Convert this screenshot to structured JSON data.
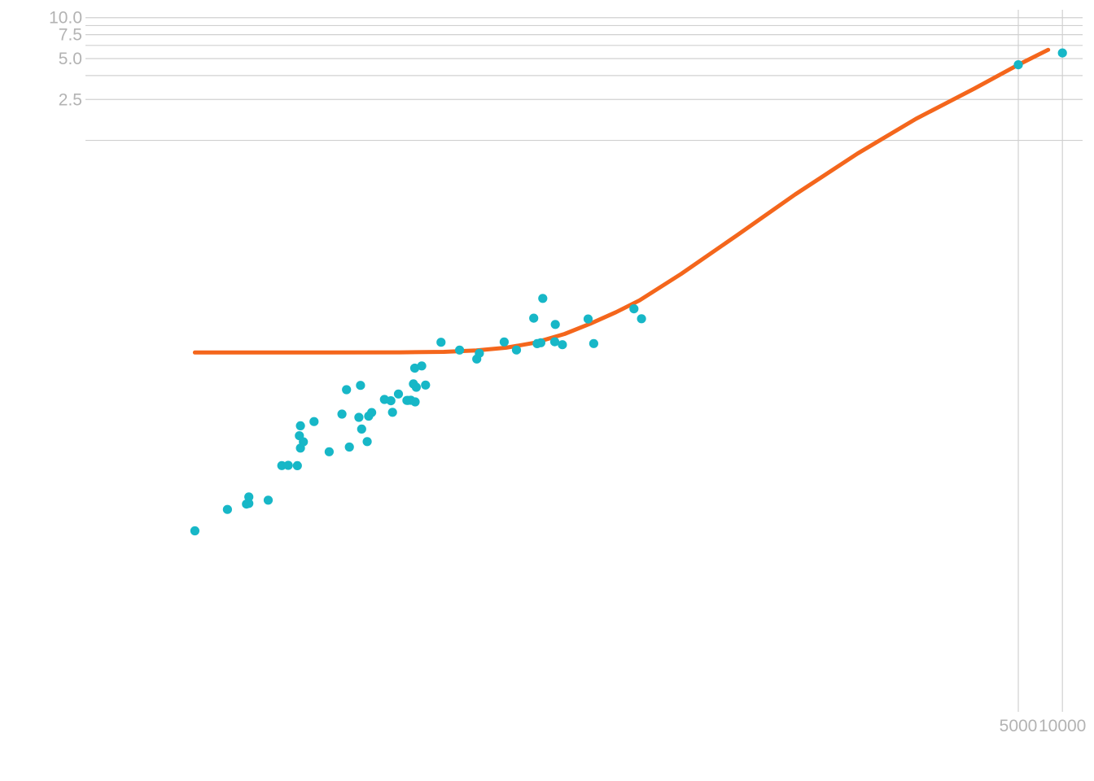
{
  "chart_data": {
    "type": "scatter",
    "title": "",
    "xlabel": "",
    "ylabel": "",
    "x_scale": "log",
    "y_scale": "log",
    "grid": true,
    "legend": "none",
    "x_ticks": [
      {
        "value": 5000,
        "label": "5000"
      },
      {
        "value": 10000,
        "label": "10000"
      }
    ],
    "y_ticks": [
      {
        "value": 10.0,
        "label": "10.0"
      },
      {
        "value": 7.5,
        "label": "7.5"
      },
      {
        "value": 5.0,
        "label": "5.0"
      },
      {
        "value": 2.5,
        "label": "2.5"
      }
    ],
    "y_minor_gridlines": [
      8.75,
      6.25,
      3.75,
      1.25
    ],
    "colors": {
      "points": "#17b7c7",
      "trend": "#f4661c",
      "grid": "#d0d0d0",
      "tick_text": "#b3b3b3"
    },
    "series": [
      {
        "type": "scatter",
        "points": [
          [
            0.012,
            0.00167
          ],
          [
            0.02,
            0.0024
          ],
          [
            0.027,
            0.00263
          ],
          [
            0.028,
            0.00297
          ],
          [
            0.028,
            0.00266
          ],
          [
            0.038,
            0.00281
          ],
          [
            0.047,
            0.00505
          ],
          [
            0.052,
            0.00507
          ],
          [
            0.06,
            0.00504
          ],
          [
            0.062,
            0.00837
          ],
          [
            0.063,
            0.00679
          ],
          [
            0.063,
            0.00991
          ],
          [
            0.066,
            0.00755
          ],
          [
            0.078,
            0.01065
          ],
          [
            0.099,
            0.00638
          ],
          [
            0.121,
            0.01209
          ],
          [
            0.13,
            0.01828
          ],
          [
            0.136,
            0.00691
          ],
          [
            0.158,
            0.01144
          ],
          [
            0.162,
            0.01967
          ],
          [
            0.165,
            0.00937
          ],
          [
            0.18,
            0.00758
          ],
          [
            0.184,
            0.01167
          ],
          [
            0.193,
            0.01241
          ],
          [
            0.236,
            0.01549
          ],
          [
            0.261,
            0.01515
          ],
          [
            0.268,
            0.01245
          ],
          [
            0.294,
            0.01698
          ],
          [
            0.336,
            0.01524
          ],
          [
            0.342,
            0.01523
          ],
          [
            0.357,
            0.01527
          ],
          [
            0.372,
            0.02016
          ],
          [
            0.38,
            0.02633
          ],
          [
            0.382,
            0.01487
          ],
          [
            0.389,
            0.01905
          ],
          [
            0.424,
            0.02734
          ],
          [
            0.45,
            0.01978
          ],
          [
            0.574,
            0.04083
          ],
          [
            0.768,
            0.03578
          ],
          [
            1.006,
            0.03075
          ],
          [
            1.048,
            0.03389
          ],
          [
            1.549,
            0.04106
          ],
          [
            1.879,
            0.0358
          ],
          [
            2.466,
            0.06144
          ],
          [
            2.6,
            0.0399
          ],
          [
            2.755,
            0.04049
          ],
          [
            2.839,
            0.08586
          ],
          [
            3.427,
            0.04117
          ],
          [
            3.46,
            0.05525
          ],
          [
            3.867,
            0.03915
          ],
          [
            5.796,
            0.06058
          ],
          [
            6.327,
            0.03993
          ],
          [
            11.908,
            0.07198
          ],
          [
            13.398,
            0.06083
          ],
          [
            5000,
            4.5
          ],
          [
            10000,
            5.5
          ]
        ]
      },
      {
        "type": "line",
        "points": [
          [
            0.012,
            0.0343
          ],
          [
            0.03,
            0.0343
          ],
          [
            0.1,
            0.0343
          ],
          [
            0.3,
            0.0344
          ],
          [
            0.6,
            0.0347
          ],
          [
            1.0,
            0.0355
          ],
          [
            1.6,
            0.0372
          ],
          [
            2.5,
            0.0405
          ],
          [
            4.0,
            0.047
          ],
          [
            6.0,
            0.056
          ],
          [
            9.0,
            0.068
          ],
          [
            13.0,
            0.083
          ],
          [
            25.0,
            0.13
          ],
          [
            60.0,
            0.25
          ],
          [
            150.0,
            0.5
          ],
          [
            400.0,
            1.0
          ],
          [
            1000.0,
            1.8
          ],
          [
            2500.0,
            3.0
          ],
          [
            5000.0,
            4.5
          ],
          [
            8000.0,
            5.8
          ]
        ]
      }
    ]
  }
}
